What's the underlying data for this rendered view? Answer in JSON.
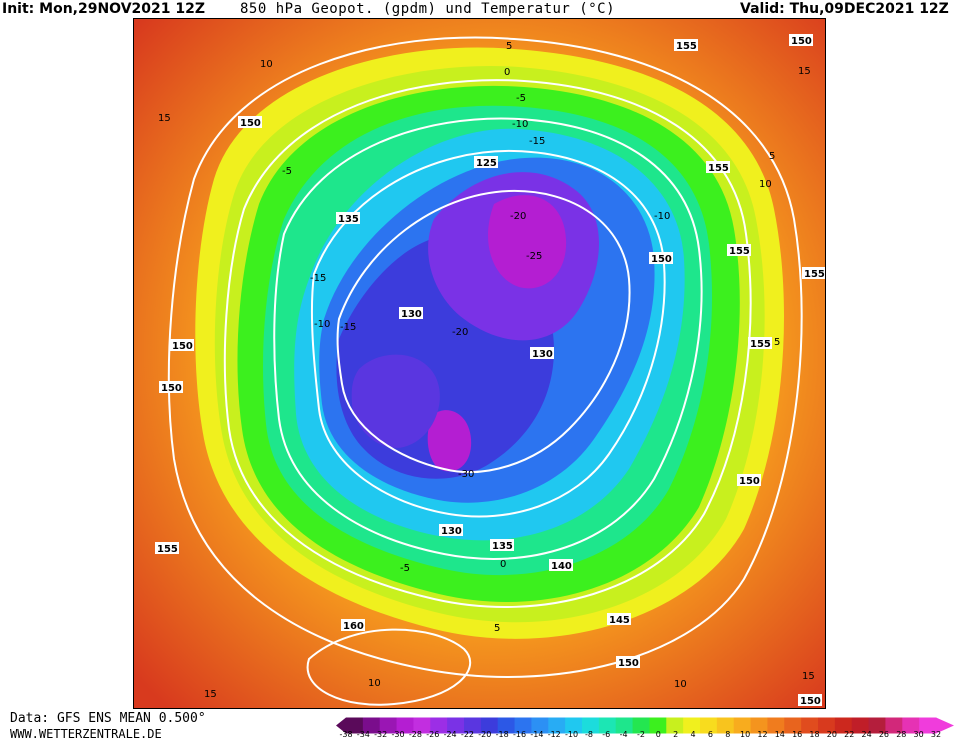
{
  "header": {
    "init": "Init: Mon,29NOV2021 12Z",
    "title": "850 hPa Geopot. (gpdm) und Temperatur (°C)",
    "valid": "Valid: Thu,09DEC2021 12Z"
  },
  "footer": {
    "data_source": "Data: GFS ENS MEAN 0.500°",
    "website": "WWW.WETTERZENTRALE.DE"
  },
  "colorbar": {
    "ticks": [
      "-38",
      "-34",
      "-32",
      "-30",
      "-28",
      "-26",
      "-24",
      "-22",
      "-20",
      "-18",
      "-16",
      "-14",
      "-12",
      "-10",
      "-8",
      "-6",
      "-4",
      "-2",
      "0",
      "2",
      "4",
      "6",
      "8",
      "10",
      "12",
      "14",
      "16",
      "18",
      "20",
      "22",
      "24",
      "26",
      "28",
      "30",
      "32"
    ],
    "colors": [
      "#5a0a5a",
      "#7a0d8c",
      "#9a16b4",
      "#b41ed2",
      "#c22ee0",
      "#9c2ee6",
      "#7a32e6",
      "#5a36e0",
      "#3c3cdc",
      "#2c58e6",
      "#2c74f0",
      "#2c90f4",
      "#28acf4",
      "#20c8f0",
      "#1cdcdc",
      "#1ce6b4",
      "#1ee68c",
      "#24e650",
      "#3cf01e",
      "#c8f01e",
      "#f0f01e",
      "#f8dc1e",
      "#f8c41e",
      "#f8ac1e",
      "#f4941e",
      "#f07c1e",
      "#e8641e",
      "#e04c1e",
      "#d83a1e",
      "#cc281e",
      "#c01e28",
      "#b41e3c",
      "#d2287a",
      "#e632b4",
      "#f03cdc"
    ]
  },
  "map": {
    "geopotential_labels": [
      "155",
      "150",
      "150",
      "155",
      "155",
      "155",
      "155",
      "135",
      "150",
      "150",
      "125",
      "130",
      "130",
      "130",
      "135",
      "140",
      "145",
      "150",
      "155",
      "160",
      "150",
      "150",
      "150"
    ],
    "temperature_labels": [
      "10",
      "15",
      "5",
      "0",
      "-5",
      "-10",
      "-15",
      "-20",
      "-25",
      "-30",
      "-20",
      "-15",
      "-10",
      "-5",
      "0",
      "5",
      "10",
      "15",
      "5",
      "-5",
      "15",
      "10",
      "5",
      "10",
      "15",
      "-10",
      "-15"
    ]
  }
}
